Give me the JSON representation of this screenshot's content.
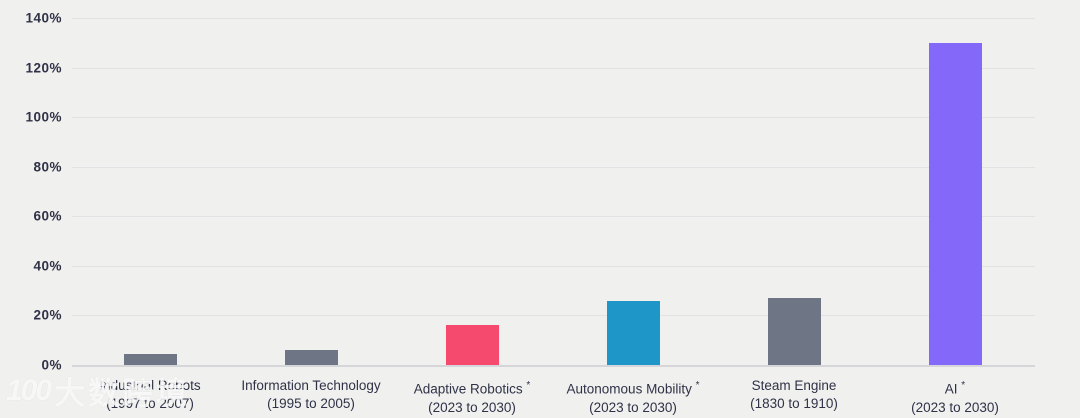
{
  "colors": {
    "background": "#f0f0ee",
    "gridline": "#e2e2e4",
    "axis_line": "#d6d6da",
    "tick_text": "#2f3247",
    "label_text": "#2f3247",
    "bar_gray": "#6e7585",
    "bar_pink": "#f54a6e",
    "bar_blue": "#1e97c8",
    "bar_purple": "#8468f9"
  },
  "watermark": {
    "logo": "100",
    "text": "大数跨境"
  },
  "chart_data": {
    "type": "bar",
    "title": "",
    "xlabel": "",
    "ylabel": "",
    "unit": "%",
    "categories": [
      "Industrial Robots",
      "Information Technology",
      "Adaptive Robotics *",
      "Autonomous Mobility *",
      "Steam Engine",
      "AI *"
    ],
    "periods": [
      "(1997 to 2007)",
      "(1995 to 2005)",
      "(2023 to 2030)",
      "(2023 to 2030)",
      "(1830 to 1910)",
      "(2023 to 2030)"
    ],
    "values": [
      4.5,
      6,
      16,
      26,
      27,
      130
    ],
    "bar_colors": [
      "#6e7585",
      "#6e7585",
      "#f54a6e",
      "#1e97c8",
      "#6e7585",
      "#8468f9"
    ],
    "ylim": [
      0,
      140
    ],
    "ytick_step": 20,
    "ytick_labels": [
      "0%",
      "20%",
      "40%",
      "60%",
      "80%",
      "100%",
      "120%",
      "140%"
    ],
    "grid": true,
    "legend": "none"
  }
}
